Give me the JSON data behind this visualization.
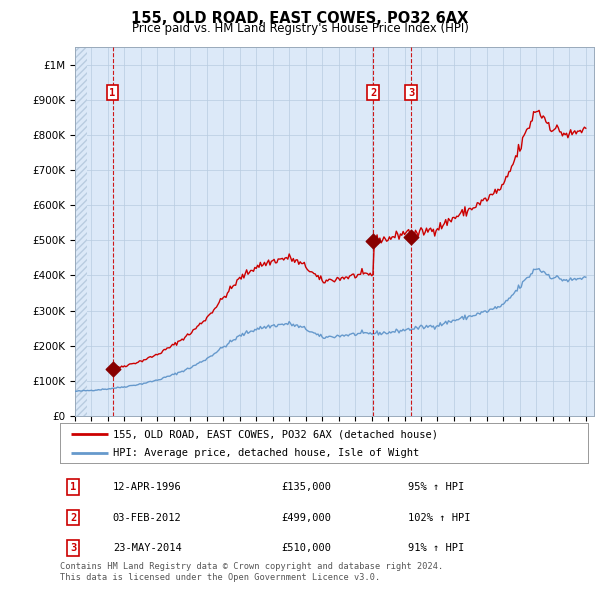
{
  "title": "155, OLD ROAD, EAST COWES, PO32 6AX",
  "subtitle": "Price paid vs. HM Land Registry's House Price Index (HPI)",
  "property_label": "155, OLD ROAD, EAST COWES, PO32 6AX (detached house)",
  "hpi_label": "HPI: Average price, detached house, Isle of Wight",
  "footnote1": "Contains HM Land Registry data © Crown copyright and database right 2024.",
  "footnote2": "This data is licensed under the Open Government Licence v3.0.",
  "sales": [
    {
      "num": 1,
      "date": "12-APR-1996",
      "price": 135000,
      "pct": "95%",
      "year": 1996.28
    },
    {
      "num": 2,
      "date": "03-FEB-2012",
      "price": 499000,
      "pct": "102%",
      "year": 2012.09
    },
    {
      "num": 3,
      "date": "23-MAY-2014",
      "price": 510000,
      "pct": "91%",
      "year": 2014.39
    }
  ],
  "hpi_color": "#6699cc",
  "property_color": "#cc0000",
  "sale_marker_color": "#880000",
  "label_color": "#cc0000",
  "plot_bg": "#dce9f8",
  "grid_color": "#b8cce0",
  "hatch_color": "#b8cce0",
  "ylim": [
    0,
    1050000
  ],
  "xlim_start": 1994.0,
  "xlim_end": 2025.5,
  "yticks": [
    0,
    100000,
    200000,
    300000,
    400000,
    500000,
    600000,
    700000,
    800000,
    900000,
    1000000
  ],
  "ylabels": [
    "£0",
    "£100K",
    "£200K",
    "£300K",
    "£400K",
    "£500K",
    "£600K",
    "£700K",
    "£800K",
    "£900K",
    "£1M"
  ]
}
